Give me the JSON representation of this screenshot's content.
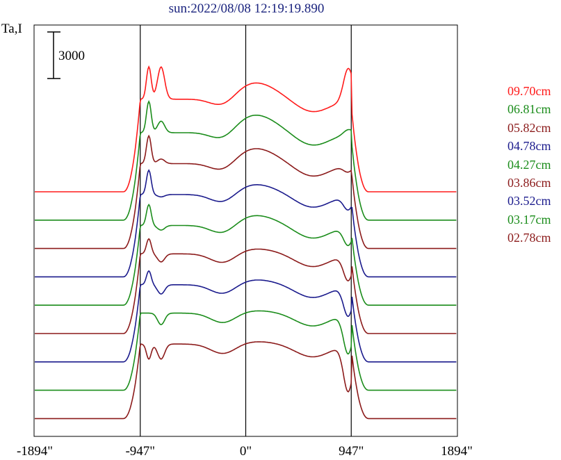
{
  "chart_data": {
    "type": "line",
    "title": "sun:2022/08/08 12:19:19.890",
    "ylabel": "Ta,I",
    "scale_bar_label": "3000",
    "scale_bar_value": 3000,
    "x_tick_labels": [
      "-1894\"",
      "-947\"",
      "0\"",
      "947\"",
      "1894\""
    ],
    "x_ticks": [
      -1894,
      -947,
      0,
      947,
      1894
    ],
    "vlines": [
      -947,
      0,
      947
    ],
    "xlim": [
      -1894,
      1894
    ],
    "grid": false,
    "legend_position": "right",
    "series": [
      {
        "name": "09.70cm",
        "color": "#ff1a1a",
        "offset": 0,
        "peakL1": 1.0,
        "peakL2": 1.0,
        "peakR": 1.0,
        "center": 0.85,
        "plateau": 0.72
      },
      {
        "name": "06.81cm",
        "color": "#1a8c1a",
        "offset": 1,
        "peakL1": 0.95,
        "peakL2": 0.78,
        "peakR": 0.72,
        "center": 0.82,
        "plateau": 0.68
      },
      {
        "name": "05.82cm",
        "color": "#8b1a1a",
        "offset": 2,
        "peakL1": 0.9,
        "peakL2": 0.7,
        "peakR": 0.6,
        "center": 0.78,
        "plateau": 0.66
      },
      {
        "name": "04.78cm",
        "color": "#1a1a8c",
        "offset": 3,
        "peakL1": 0.85,
        "peakL2": 0.62,
        "peakR": 0.52,
        "center": 0.72,
        "plateau": 0.64
      },
      {
        "name": "04.27cm",
        "color": "#1a8c1a",
        "offset": 4,
        "peakL1": 0.8,
        "peakL2": 0.58,
        "peakR": 0.46,
        "center": 0.7,
        "plateau": 0.62
      },
      {
        "name": "03.86cm",
        "color": "#8b1a1a",
        "offset": 5,
        "peakL1": 0.75,
        "peakL2": 0.55,
        "peakR": 0.4,
        "center": 0.66,
        "plateau": 0.62
      },
      {
        "name": "03.52cm",
        "color": "#1a1a8c",
        "offset": 6,
        "peakL1": 0.72,
        "peakL2": 0.52,
        "peakR": 0.34,
        "center": 0.64,
        "plateau": 0.6
      },
      {
        "name": "03.17cm",
        "color": "#1a8c1a",
        "offset": 7,
        "peakL1": 0.6,
        "peakL2": 0.5,
        "peakR": 0.26,
        "center": 0.62,
        "plateau": 0.6
      },
      {
        "name": "02.78cm",
        "color": "#8b1a1a",
        "offset": 8,
        "peakL1": 0.45,
        "peakL2": 0.45,
        "peakR": 0.18,
        "center": 0.6,
        "plateau": 0.58
      }
    ]
  }
}
